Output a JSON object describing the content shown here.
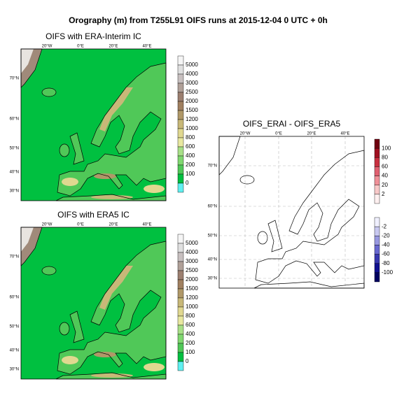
{
  "title": "Orography (m) from T255L91 OIFS runs at 2015-12-04 0 UTC + 0h",
  "panels": [
    {
      "title": "OIFS with ERA-Interim IC",
      "lon_labels": [
        "20°W",
        "0°E",
        "20°E",
        "40°E"
      ],
      "lat_labels": [
        "70°N",
        "60°N",
        "50°N",
        "40°N",
        "30°N"
      ],
      "colorbar_labels": [
        "5000",
        "4000",
        "3000",
        "2500",
        "2000",
        "1500",
        "1200",
        "1000",
        "800",
        "600",
        "400",
        "200",
        "100",
        "0"
      ]
    },
    {
      "title": "OIFS with ERA5 IC",
      "lon_labels": [
        "20°W",
        "0°E",
        "20°E",
        "40°E"
      ],
      "lat_labels": [
        "70°N",
        "60°N",
        "50°N",
        "40°N",
        "30°N"
      ],
      "colorbar_labels": [
        "5000",
        "4000",
        "3000",
        "2500",
        "2000",
        "1500",
        "1200",
        "1000",
        "800",
        "600",
        "400",
        "200",
        "100",
        "0"
      ]
    },
    {
      "title": "OIFS_ERAI - OIFS_ERA5",
      "lon_labels": [
        "20°W",
        "0°E",
        "20°E",
        "40°E"
      ],
      "lat_labels": [
        "70°N",
        "60°N",
        "50°N",
        "40°N",
        "30°N"
      ],
      "colorbar_positive_labels": [
        "100",
        "80",
        "60",
        "40",
        "20",
        "2"
      ],
      "colorbar_negative_labels": [
        "-2",
        "-20",
        "-40",
        "-60",
        "-80",
        "-100"
      ]
    }
  ]
}
